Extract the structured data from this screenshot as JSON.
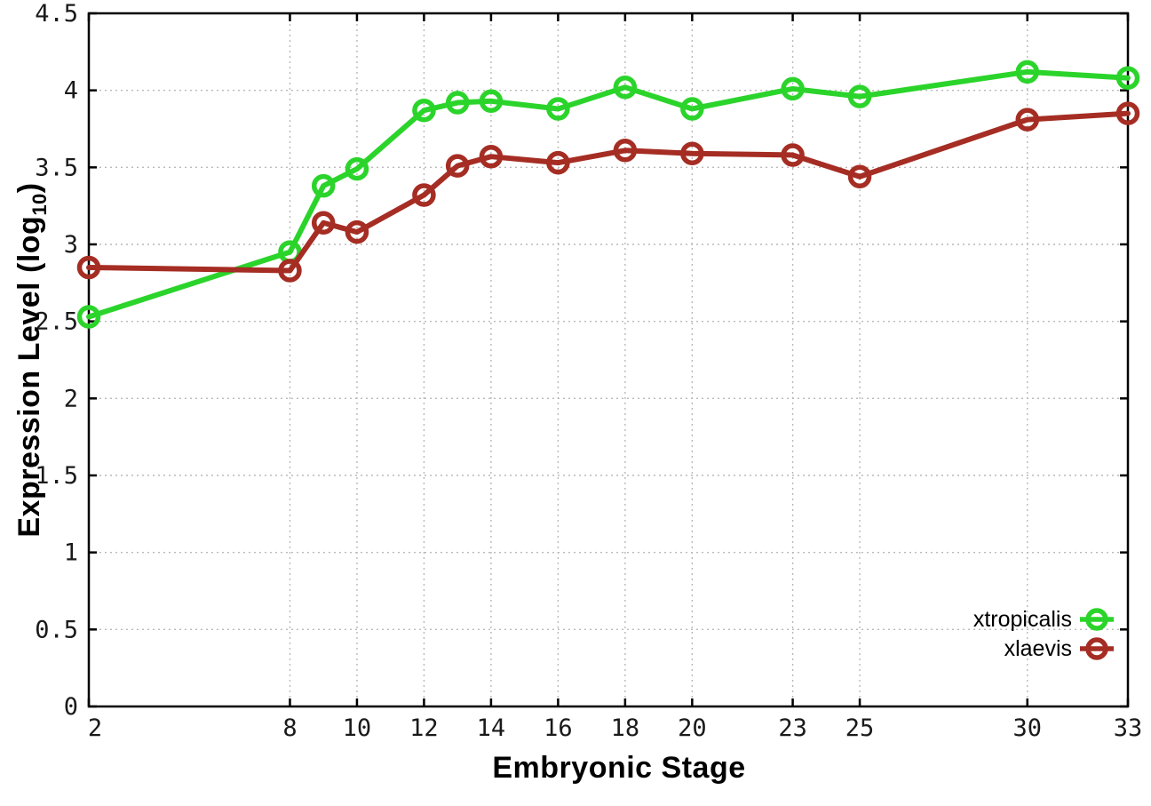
{
  "chart_data": {
    "type": "line",
    "title": "",
    "xlabel": "Embryonic Stage",
    "ylabel": {
      "prefix": "Expression Level (log",
      "sub": "10",
      "suffix": ")"
    },
    "x": [
      2,
      8,
      9,
      10,
      12,
      13,
      14,
      16,
      18,
      20,
      23,
      25,
      30,
      33
    ],
    "series": [
      {
        "name": "xtropicalis",
        "color": "#2bd42b",
        "marker": "open-circle",
        "values": [
          2.53,
          2.95,
          3.38,
          3.49,
          3.87,
          3.92,
          3.93,
          3.88,
          4.02,
          3.88,
          4.01,
          3.96,
          4.12,
          4.08
        ]
      },
      {
        "name": "xlaevis",
        "color": "#a52d23",
        "marker": "open-circle",
        "values": [
          2.85,
          2.83,
          3.14,
          3.08,
          3.32,
          3.51,
          3.57,
          3.53,
          3.61,
          3.59,
          3.58,
          3.44,
          3.81,
          3.85
        ]
      }
    ],
    "xlim": [
      2,
      33
    ],
    "ylim": [
      0,
      4.5
    ],
    "x_ticks": [
      2,
      8,
      10,
      12,
      14,
      16,
      18,
      20,
      23,
      25,
      30,
      33
    ],
    "x_tick_labels": [
      "2",
      "8",
      "10",
      "12",
      "14",
      "16",
      "18",
      "20",
      "23",
      "25",
      "30",
      "33"
    ],
    "y_ticks": [
      0,
      0.5,
      1,
      1.5,
      2,
      2.5,
      3,
      3.5,
      4,
      4.5
    ],
    "y_tick_labels": [
      "0",
      "0.5",
      "1",
      "1.5",
      "2",
      "2.5",
      "3",
      "3.5",
      "4",
      "4.5"
    ],
    "grid": true,
    "legend_position": "bottom-right"
  },
  "colors": {
    "background": "#ffffff",
    "border": "#000000",
    "grid": "#b9b9b9",
    "tick_text": "#1a1a1a"
  }
}
